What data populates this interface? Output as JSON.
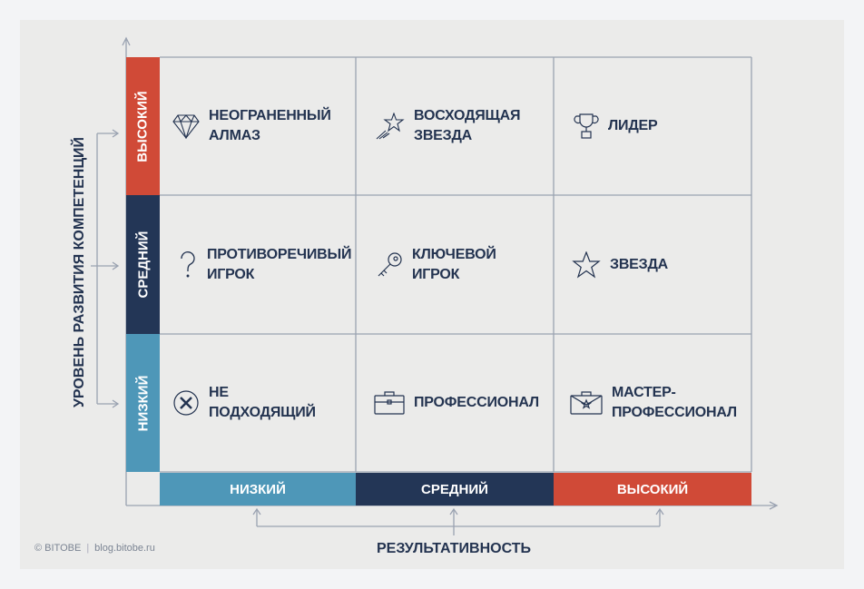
{
  "y_axis_label": "УРОВЕНЬ РАЗВИТИЯ КОМПЕТЕНЦИЙ",
  "x_axis_label": "РЕЗУЛЬТАТИВНОСТЬ",
  "rows": [
    {
      "label": "ВЫСОКИЙ",
      "color": "#d04a37"
    },
    {
      "label": "СРЕДНИЙ",
      "color": "#233656"
    },
    {
      "label": "НИЗКИЙ",
      "color": "#4e97b8"
    }
  ],
  "columns": [
    {
      "label": "НИЗКИЙ",
      "color": "#4e97b8"
    },
    {
      "label": "СРЕДНИЙ",
      "color": "#233656"
    },
    {
      "label": "ВЫСОКИЙ",
      "color": "#d04a37"
    }
  ],
  "cells": [
    {
      "label": "НЕОГРАНЕННЫЙ\nАЛМАЗ",
      "icon": "diamond-icon"
    },
    {
      "label": "ВОСХОДЯЩАЯ\nЗВЕЗДА",
      "icon": "shooting-star-icon"
    },
    {
      "label": "ЛИДЕР",
      "icon": "trophy-icon"
    },
    {
      "label": "ПРОТИВОРЕЧИВЫЙ\nИГРОК",
      "icon": "question-icon"
    },
    {
      "label": "КЛЮЧЕВОЙ\nИГРОК",
      "icon": "key-icon"
    },
    {
      "label": "ЗВЕЗДА",
      "icon": "star-icon"
    },
    {
      "label": "НЕ\nПОДХОДЯЩИЙ",
      "icon": "cross-circle-icon"
    },
    {
      "label": "ПРОФЕССИОНАЛ",
      "icon": "briefcase-icon"
    },
    {
      "label": "МАСТЕР-\nПРОФЕССИОНАЛ",
      "icon": "briefcase-star-icon"
    }
  ],
  "credit": {
    "brand": "© BITOBE",
    "site": "blog.bitobe.ru"
  }
}
